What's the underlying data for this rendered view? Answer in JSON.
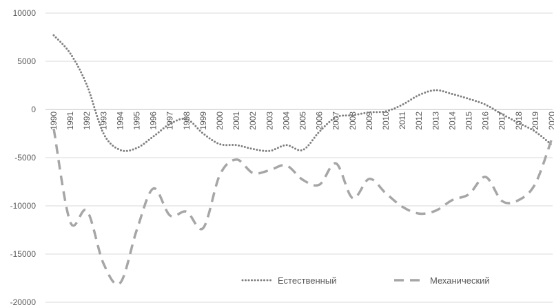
{
  "chart_data": {
    "type": "line",
    "categories": [
      "1990",
      "1991",
      "1992",
      "1993",
      "1994",
      "1995",
      "1996",
      "1997",
      "1998",
      "1999",
      "2000",
      "2001",
      "2002",
      "2003",
      "2004",
      "2005",
      "2006",
      "2007",
      "2008",
      "2009",
      "2010",
      "2011",
      "2012",
      "2013",
      "2014",
      "2015",
      "2016",
      "2017",
      "2018",
      "2019",
      "2020"
    ],
    "ylim": [
      -20000,
      10000
    ],
    "yticks": [
      10000,
      5000,
      0,
      -5000,
      -10000,
      -15000,
      -20000
    ],
    "grid": true,
    "legend_position": "bottom-right",
    "series": [
      {
        "name": "Естественный",
        "style": "dotted",
        "color": "#7f7f7f",
        "values": [
          7700,
          5800,
          2500,
          -2500,
          -4200,
          -4000,
          -2800,
          -1500,
          -1000,
          -2500,
          -3600,
          -3700,
          -4100,
          -4300,
          -3700,
          -4200,
          -2300,
          -800,
          -600,
          -300,
          -200,
          500,
          1500,
          2000,
          1600,
          1100,
          500,
          -500,
          -1400,
          -2300,
          -3700
        ]
      },
      {
        "name": "Механический",
        "style": "dashed",
        "color": "#a6a6a6",
        "values": [
          -2000,
          -11700,
          -10500,
          -16000,
          -18000,
          -12500,
          -8200,
          -11000,
          -10600,
          -12300,
          -6800,
          -5200,
          -6600,
          -6300,
          -5800,
          -7300,
          -7800,
          -5600,
          -9200,
          -7200,
          -8700,
          -10100,
          -10800,
          -10500,
          -9400,
          -8800,
          -7000,
          -9500,
          -9400,
          -7700,
          -3000
        ]
      }
    ]
  }
}
